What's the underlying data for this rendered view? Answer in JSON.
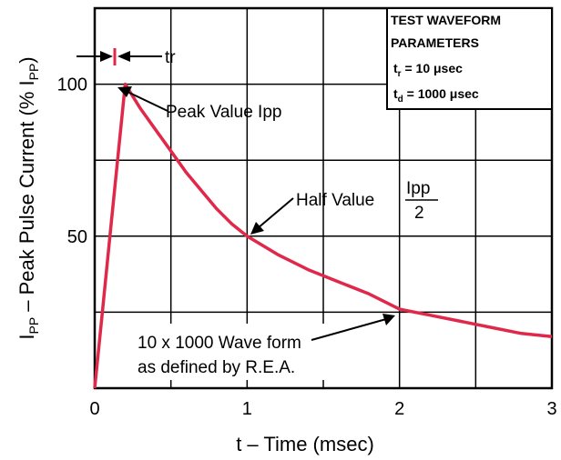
{
  "chart_data": {
    "type": "line",
    "title": "",
    "xlabel": "t – Time (msec)",
    "ylabel_parts": {
      "main1": "I",
      "sub1": "PP",
      "main2": " – Peak Pulse Current (% I",
      "sub2": "PP",
      "main3": ")"
    },
    "xlim": [
      0,
      3
    ],
    "ylim": [
      0,
      125
    ],
    "x_tick_labels": [
      "0",
      "1",
      "2",
      "3"
    ],
    "y_tick_labels": [
      "50",
      "100"
    ],
    "grid": true,
    "series": [
      {
        "x": [
          0,
          0.05,
          0.1,
          0.15,
          0.2,
          0.3,
          0.4,
          0.5,
          0.6,
          0.7,
          0.8,
          0.9,
          1.0,
          1.2,
          1.4,
          1.6,
          1.8,
          2.0,
          2.2,
          2.4,
          2.6,
          2.8,
          3.0
        ],
        "y": [
          0,
          25,
          50,
          75,
          100,
          92,
          85,
          78,
          71,
          65,
          59,
          54,
          50,
          44,
          39,
          35,
          31,
          26,
          24,
          22,
          20,
          18,
          17
        ],
        "color": "#e0284a"
      }
    ],
    "annotations": {
      "tr_label": "tr",
      "peak": "Peak Value Ipp",
      "half_prefix": "Half Value",
      "half_num": "Ipp",
      "half_den": "2",
      "wave_line1": "10 x 1000 Wave form",
      "wave_line2": "as defined by R.E.A."
    },
    "legend_box": {
      "title1": "TEST WAVEFORM",
      "title2": "PARAMETERS",
      "p1_main": "t",
      "p1_sub": "r",
      "p1_val": " = 10 μsec",
      "p2_main": "t",
      "p2_sub": "d",
      "p2_val": " = 1000 μsec"
    }
  }
}
